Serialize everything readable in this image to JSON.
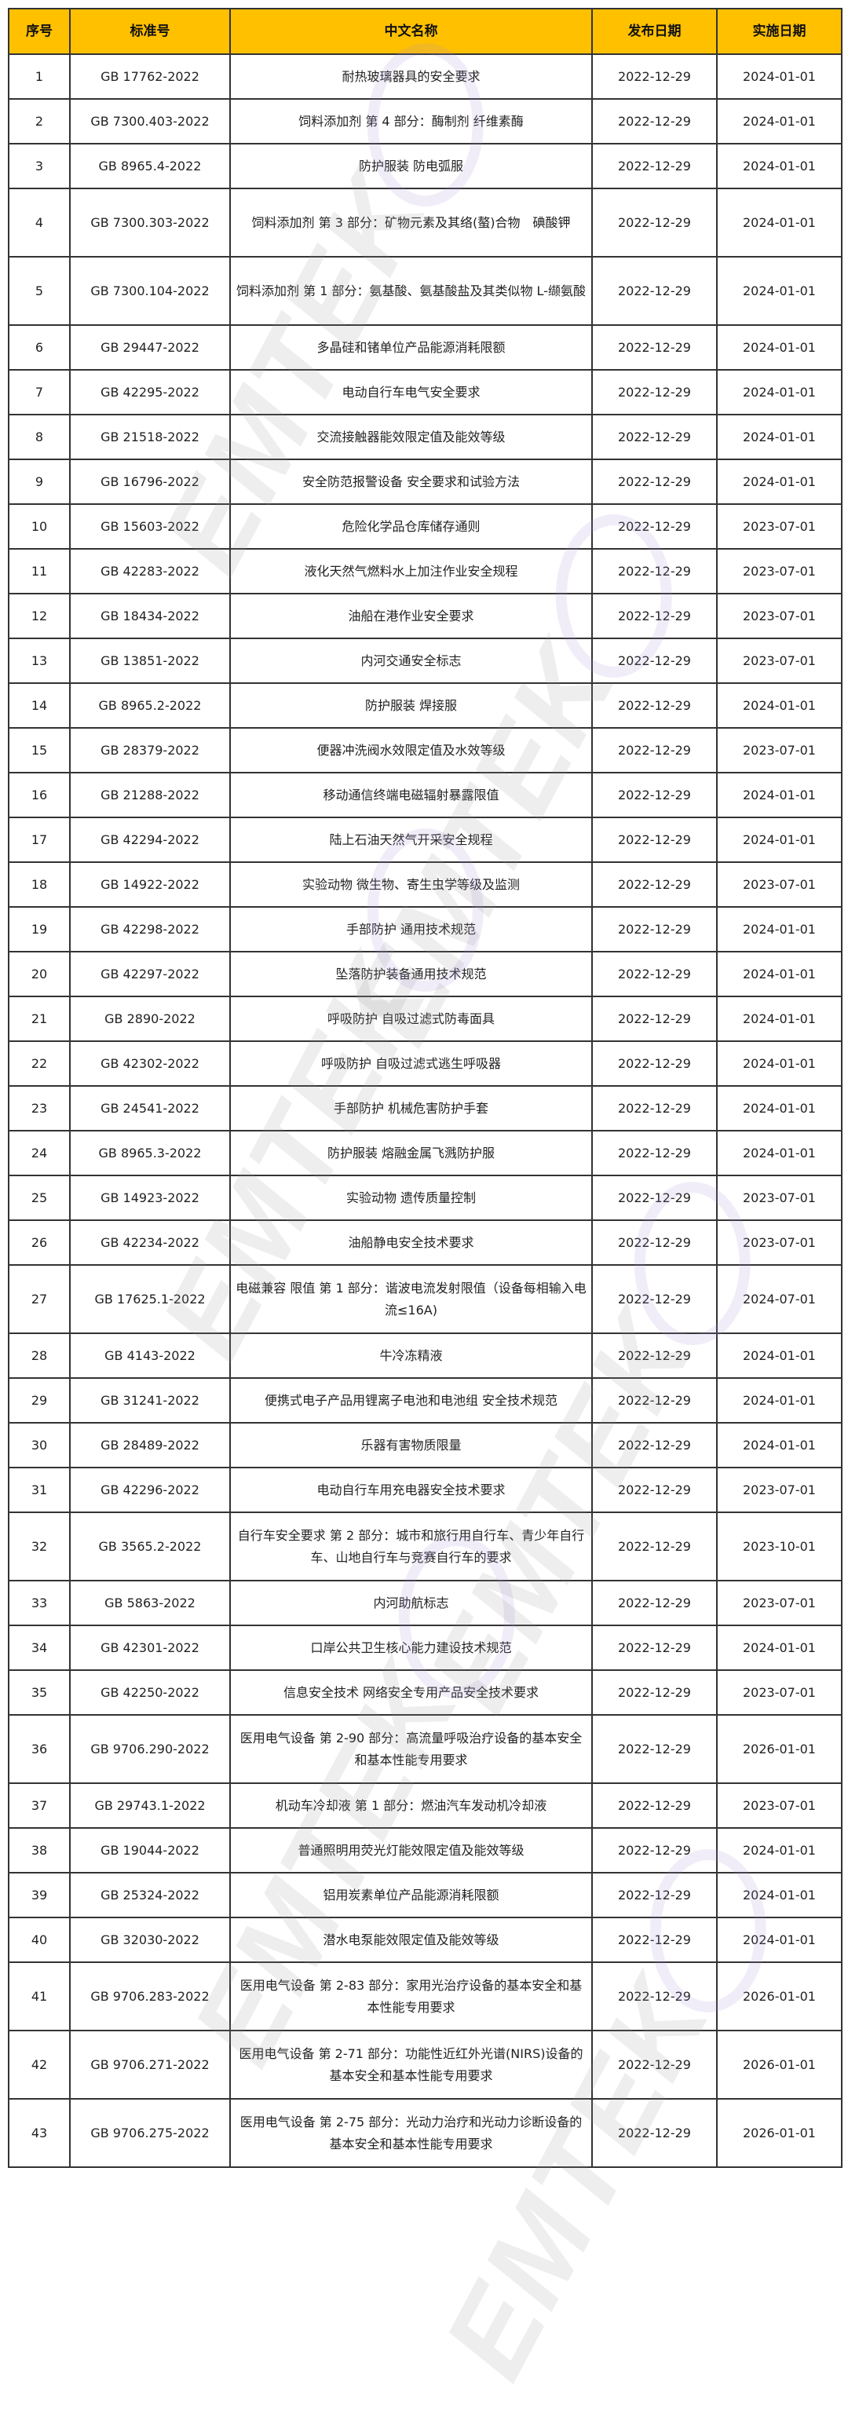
{
  "watermark": {
    "text": "EMTEK",
    "logo_color": "#b9a6d8"
  },
  "colors": {
    "header_bg": "#ffc000",
    "border": "#333333"
  },
  "table": {
    "headers": [
      "序号",
      "标准号",
      "中文名称",
      "发布日期",
      "实施日期"
    ],
    "rows": [
      [
        "1",
        "GB 17762-2022",
        "耐热玻璃器具的安全要求",
        "2022-12-29",
        "2024-01-01"
      ],
      [
        "2",
        "GB 7300.403-2022",
        "饲料添加剂 第 4 部分：酶制剂 纤维素酶",
        "2022-12-29",
        "2024-01-01"
      ],
      [
        "3",
        "GB 8965.4-2022",
        "防护服装 防电弧服",
        "2022-12-29",
        "2024-01-01"
      ],
      [
        "4",
        "GB 7300.303-2022",
        "饲料添加剂 第 3 部分：矿物元素及其络(螯)合物　碘酸钾",
        "2022-12-29",
        "2024-01-01"
      ],
      [
        "5",
        "GB 7300.104-2022",
        "饲料添加剂 第 1 部分：氨基酸、氨基酸盐及其类似物 L-缬氨酸",
        "2022-12-29",
        "2024-01-01"
      ],
      [
        "6",
        "GB 29447-2022",
        "多晶硅和锗单位产品能源消耗限额",
        "2022-12-29",
        "2024-01-01"
      ],
      [
        "7",
        "GB 42295-2022",
        "电动自行车电气安全要求",
        "2022-12-29",
        "2024-01-01"
      ],
      [
        "8",
        "GB 21518-2022",
        "交流接触器能效限定值及能效等级",
        "2022-12-29",
        "2024-01-01"
      ],
      [
        "9",
        "GB 16796-2022",
        "安全防范报警设备 安全要求和试验方法",
        "2022-12-29",
        "2024-01-01"
      ],
      [
        "10",
        "GB 15603-2022",
        "危险化学品仓库储存通则",
        "2022-12-29",
        "2023-07-01"
      ],
      [
        "11",
        "GB 42283-2022",
        "液化天然气燃料水上加注作业安全规程",
        "2022-12-29",
        "2023-07-01"
      ],
      [
        "12",
        "GB 18434-2022",
        "油船在港作业安全要求",
        "2022-12-29",
        "2023-07-01"
      ],
      [
        "13",
        "GB 13851-2022",
        "内河交通安全标志",
        "2022-12-29",
        "2023-07-01"
      ],
      [
        "14",
        "GB 8965.2-2022",
        "防护服装 焊接服",
        "2022-12-29",
        "2024-01-01"
      ],
      [
        "15",
        "GB 28379-2022",
        "便器冲洗阀水效限定值及水效等级",
        "2022-12-29",
        "2023-07-01"
      ],
      [
        "16",
        "GB 21288-2022",
        "移动通信终端电磁辐射暴露限值",
        "2022-12-29",
        "2024-01-01"
      ],
      [
        "17",
        "GB 42294-2022",
        "陆上石油天然气开采安全规程",
        "2022-12-29",
        "2024-01-01"
      ],
      [
        "18",
        "GB 14922-2022",
        "实验动物 微生物、寄生虫学等级及监测",
        "2022-12-29",
        "2023-07-01"
      ],
      [
        "19",
        "GB 42298-2022",
        "手部防护 通用技术规范",
        "2022-12-29",
        "2024-01-01"
      ],
      [
        "20",
        "GB 42297-2022",
        "坠落防护装备通用技术规范",
        "2022-12-29",
        "2024-01-01"
      ],
      [
        "21",
        "GB 2890-2022",
        "呼吸防护 自吸过滤式防毒面具",
        "2022-12-29",
        "2024-01-01"
      ],
      [
        "22",
        "GB 42302-2022",
        "呼吸防护 自吸过滤式逃生呼吸器",
        "2022-12-29",
        "2024-01-01"
      ],
      [
        "23",
        "GB 24541-2022",
        "手部防护 机械危害防护手套",
        "2022-12-29",
        "2024-01-01"
      ],
      [
        "24",
        "GB 8965.3-2022",
        "防护服装 熔融金属飞溅防护服",
        "2022-12-29",
        "2024-01-01"
      ],
      [
        "25",
        "GB 14923-2022",
        "实验动物 遗传质量控制",
        "2022-12-29",
        "2023-07-01"
      ],
      [
        "26",
        "GB 42234-2022",
        "油船静电安全技术要求",
        "2022-12-29",
        "2023-07-01"
      ],
      [
        "27",
        "GB 17625.1-2022",
        "电磁兼容 限值 第 1 部分：谐波电流发射限值（设备每相输入电流≤16A)",
        "2022-12-29",
        "2024-07-01"
      ],
      [
        "28",
        "GB 4143-2022",
        "牛冷冻精液",
        "2022-12-29",
        "2024-01-01"
      ],
      [
        "29",
        "GB 31241-2022",
        "便携式电子产品用锂离子电池和电池组 安全技术规范",
        "2022-12-29",
        "2024-01-01"
      ],
      [
        "30",
        "GB 28489-2022",
        "乐器有害物质限量",
        "2022-12-29",
        "2024-01-01"
      ],
      [
        "31",
        "GB 42296-2022",
        "电动自行车用充电器安全技术要求",
        "2022-12-29",
        "2023-07-01"
      ],
      [
        "32",
        "GB 3565.2-2022",
        "自行车安全要求 第 2 部分：城市和旅行用自行车、青少年自行车、山地自行车与竞赛自行车的要求",
        "2022-12-29",
        "2023-10-01"
      ],
      [
        "33",
        "GB 5863-2022",
        "内河助航标志",
        "2022-12-29",
        "2023-07-01"
      ],
      [
        "34",
        "GB 42301-2022",
        "口岸公共卫生核心能力建设技术规范",
        "2022-12-29",
        "2024-01-01"
      ],
      [
        "35",
        "GB 42250-2022",
        "信息安全技术 网络安全专用产品安全技术要求",
        "2022-12-29",
        "2023-07-01"
      ],
      [
        "36",
        "GB 9706.290-2022",
        "医用电气设备 第 2-90 部分：高流量呼吸治疗设备的基本安全和基本性能专用要求",
        "2022-12-29",
        "2026-01-01"
      ],
      [
        "37",
        "GB 29743.1-2022",
        "机动车冷却液 第 1 部分：燃油汽车发动机冷却液",
        "2022-12-29",
        "2023-07-01"
      ],
      [
        "38",
        "GB 19044-2022",
        "普通照明用荧光灯能效限定值及能效等级",
        "2022-12-29",
        "2024-01-01"
      ],
      [
        "39",
        "GB 25324-2022",
        "铝用炭素单位产品能源消耗限额",
        "2022-12-29",
        "2024-01-01"
      ],
      [
        "40",
        "GB 32030-2022",
        "潜水电泵能效限定值及能效等级",
        "2022-12-29",
        "2024-01-01"
      ],
      [
        "41",
        "GB 9706.283-2022",
        "医用电气设备 第 2-83 部分：家用光治疗设备的基本安全和基本性能专用要求",
        "2022-12-29",
        "2026-01-01"
      ],
      [
        "42",
        "GB 9706.271-2022",
        "医用电气设备 第 2-71 部分：功能性近红外光谱(NIRS)设备的基本安全和基本性能专用要求",
        "2022-12-29",
        "2026-01-01"
      ],
      [
        "43",
        "GB 9706.275-2022",
        "医用电气设备 第 2-75 部分：光动力治疗和光动力诊断设备的基本安全和基本性能专用要求",
        "2022-12-29",
        "2026-01-01"
      ]
    ]
  }
}
